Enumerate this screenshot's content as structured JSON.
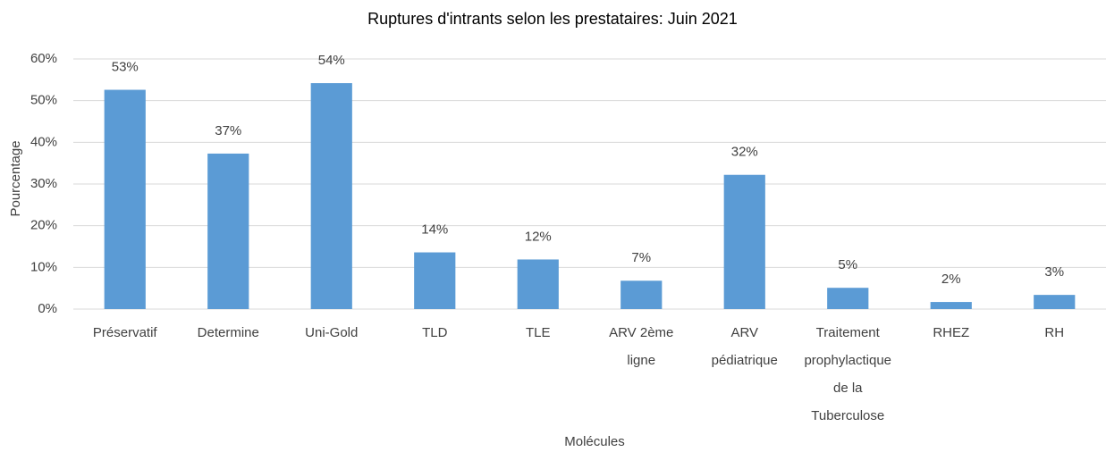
{
  "chart_data": {
    "type": "bar",
    "title": "Ruptures d'intrants selon les prestataires: Juin 2021",
    "x_label": "Molécules",
    "y_label": "Pourcentage",
    "categories": [
      "Préservatif",
      "Determine",
      "Uni-Gold",
      "TLD",
      "TLE",
      "ARV 2ème ligne",
      "ARV pédiatrique",
      "Traitement prophylactique de la Tuberculose",
      "RHEZ",
      "RH"
    ],
    "values": [
      52.6,
      37.3,
      54.2,
      13.6,
      11.9,
      6.8,
      32.2,
      5.1,
      1.7,
      3.4
    ],
    "value_labels": [
      "53%",
      "37%",
      "54%",
      "14%",
      "12%",
      "7%",
      "32%",
      "5%",
      "2%",
      "3%"
    ],
    "color": "#5b9bd5",
    "ylim": [
      0,
      60
    ],
    "yticks": [
      {
        "value": 0,
        "label": "0%"
      },
      {
        "value": 10,
        "label": "10%"
      },
      {
        "value": 20,
        "label": "20%"
      },
      {
        "value": 30,
        "label": "30%"
      },
      {
        "value": 40,
        "label": "40%"
      },
      {
        "value": 50,
        "label": "50%"
      },
      {
        "value": 60,
        "label": "60%"
      }
    ],
    "grid": true
  }
}
